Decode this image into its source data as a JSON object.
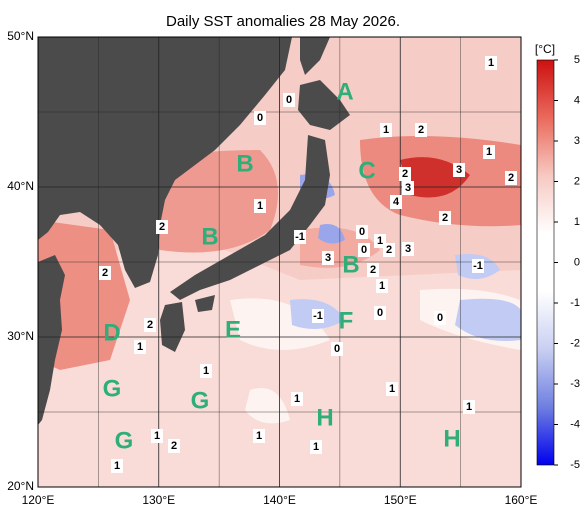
{
  "map": {
    "title": "Daily SST anomalies 28 May 2026.",
    "lat_labels": [
      "50°N",
      "40°N",
      "30°N",
      "20°N"
    ],
    "lon_labels": [
      "120°E",
      "130°E",
      "140°E",
      "150°E",
      "160°E"
    ],
    "regions": [
      "A",
      "B",
      "B",
      "B",
      "C",
      "D",
      "E",
      "F",
      "G",
      "G",
      "G",
      "H",
      "H"
    ],
    "contour_labels": [
      1,
      0,
      0,
      1,
      2,
      1,
      3,
      2,
      2,
      3,
      4,
      1,
      2,
      2,
      -1,
      0,
      1,
      0,
      3,
      2,
      3,
      2,
      -1,
      2,
      1,
      -1,
      0,
      0,
      2,
      1,
      0,
      1,
      1,
      1,
      1,
      1,
      1,
      2,
      1,
      1
    ]
  },
  "colorbar": {
    "unit": "[°C]",
    "range": [
      -5,
      5
    ],
    "ticks": [
      5,
      4,
      3,
      2,
      1,
      0,
      -1,
      -2,
      -3,
      -4,
      -5
    ],
    "colors": [
      "#0000ee",
      "#6f7fe0",
      "#c9cff2",
      "#ffffff",
      "#ffffff",
      "#f7c9c2",
      "#ea6a5c",
      "#cc1111"
    ]
  }
}
